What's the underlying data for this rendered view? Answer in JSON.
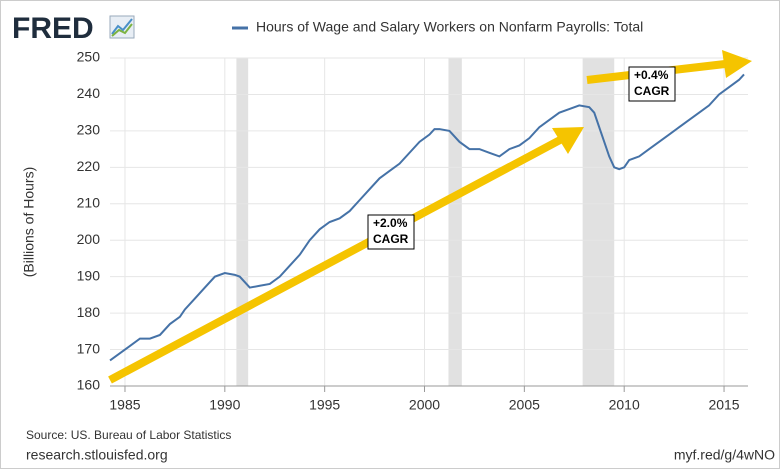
{
  "header": {
    "logo": "FRED"
  },
  "chart_data": {
    "type": "line",
    "series": [
      {
        "name": "Hours of Wage and Salary Workers on Nonfarm Payrolls: Total",
        "color": "#4572a7",
        "x": [
          1984.25,
          1984.75,
          1985.25,
          1985.75,
          1986.25,
          1986.75,
          1987.25,
          1987.75,
          1988.0,
          1988.5,
          1989.0,
          1989.5,
          1990.0,
          1990.5,
          1990.75,
          1991.25,
          1991.75,
          1992.25,
          1992.75,
          1993.25,
          1993.75,
          1994.25,
          1994.75,
          1995.25,
          1995.75,
          1996.25,
          1996.75,
          1997.25,
          1997.75,
          1998.25,
          1998.75,
          1999.25,
          1999.75,
          2000.25,
          2000.5,
          2000.75,
          2001.25,
          2001.75,
          2002.25,
          2002.75,
          2003.25,
          2003.75,
          2004.25,
          2004.75,
          2005.25,
          2005.75,
          2006.25,
          2006.75,
          2007.25,
          2007.75,
          2008.25,
          2008.5,
          2008.75,
          2009.0,
          2009.25,
          2009.5,
          2009.75,
          2010.0,
          2010.25,
          2010.75,
          2011.25,
          2011.75,
          2012.25,
          2012.75,
          2013.25,
          2013.75,
          2014.25,
          2014.75,
          2015.25,
          2015.75,
          2016.0
        ],
        "values": [
          167,
          169,
          171,
          173,
          173,
          174,
          177,
          179,
          181,
          184,
          187,
          190,
          191,
          190.5,
          190,
          187,
          187.5,
          188,
          190,
          193,
          196,
          200,
          203,
          205,
          206,
          208,
          211,
          214,
          217,
          219,
          221,
          224,
          227,
          229,
          230.5,
          230.5,
          230,
          227,
          225,
          225,
          224,
          223,
          225,
          226,
          228,
          231,
          233,
          235,
          236,
          237,
          236.5,
          235,
          231,
          227,
          223,
          220,
          219.5,
          220,
          222,
          223,
          225,
          227,
          229,
          231,
          233,
          235,
          237,
          240,
          242,
          244,
          245.5
        ]
      }
    ],
    "recessions": [
      [
        1990.58,
        1991.17
      ],
      [
        2001.2,
        2001.87
      ],
      [
        2007.92,
        2009.5
      ]
    ],
    "xlim": [
      1984.25,
      2016.2
    ],
    "xticks": [
      1985,
      1990,
      1995,
      2000,
      2005,
      2010,
      2015
    ],
    "ylim": [
      160,
      250
    ],
    "yticks": [
      160,
      170,
      180,
      190,
      200,
      210,
      220,
      230,
      240,
      250
    ],
    "ylabel": "(Billions of Hours)",
    "grid": true,
    "annotations": [
      {
        "text": [
          "+2.0%",
          "CAGR"
        ]
      },
      {
        "text": [
          "+0.4%",
          "CAGR"
        ]
      }
    ]
  },
  "footer": {
    "source": "Source: US. Bureau of Labor Statistics",
    "site": "research.stlouisfed.org",
    "link": "myf.red/g/4wNO"
  }
}
